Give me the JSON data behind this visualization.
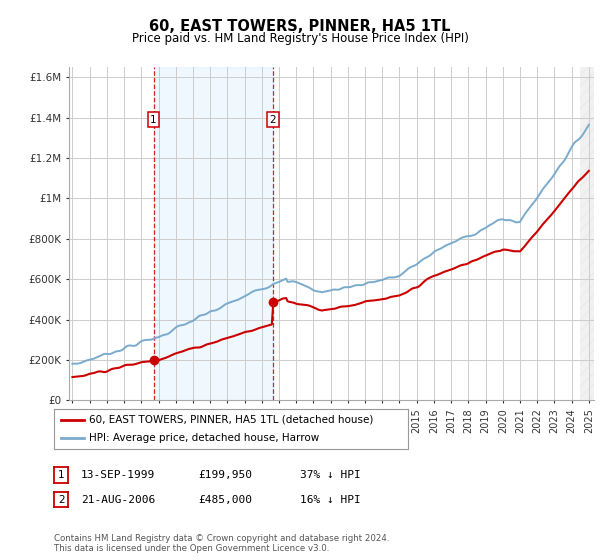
{
  "title": "60, EAST TOWERS, PINNER, HA5 1TL",
  "subtitle": "Price paid vs. HM Land Registry's House Price Index (HPI)",
  "legend_line1": "60, EAST TOWERS, PINNER, HA5 1TL (detached house)",
  "legend_line2": "HPI: Average price, detached house, Harrow",
  "note": "Contains HM Land Registry data © Crown copyright and database right 2024.\nThis data is licensed under the Open Government Licence v3.0.",
  "sale1_date": "13-SEP-1999",
  "sale1_price": "£199,950",
  "sale1_info": "37% ↓ HPI",
  "sale2_date": "21-AUG-2006",
  "sale2_price": "£485,000",
  "sale2_info": "16% ↓ HPI",
  "ylim": [
    0,
    1650000
  ],
  "yticks": [
    0,
    200000,
    400000,
    600000,
    800000,
    1000000,
    1200000,
    1400000,
    1600000
  ],
  "ytick_labels": [
    "£0",
    "£200K",
    "£400K",
    "£600K",
    "£800K",
    "£1M",
    "£1.2M",
    "£1.4M",
    "£1.6M"
  ],
  "red_line_color": "#cc0000",
  "blue_line_color": "#7aabcc",
  "shade_color": "#ddeeff",
  "grid_color": "#cccccc",
  "sale1_x": 1999.71,
  "sale1_y": 199950,
  "sale2_x": 2006.64,
  "sale2_y": 485000,
  "xmin": 1994.8,
  "xmax": 2025.3
}
